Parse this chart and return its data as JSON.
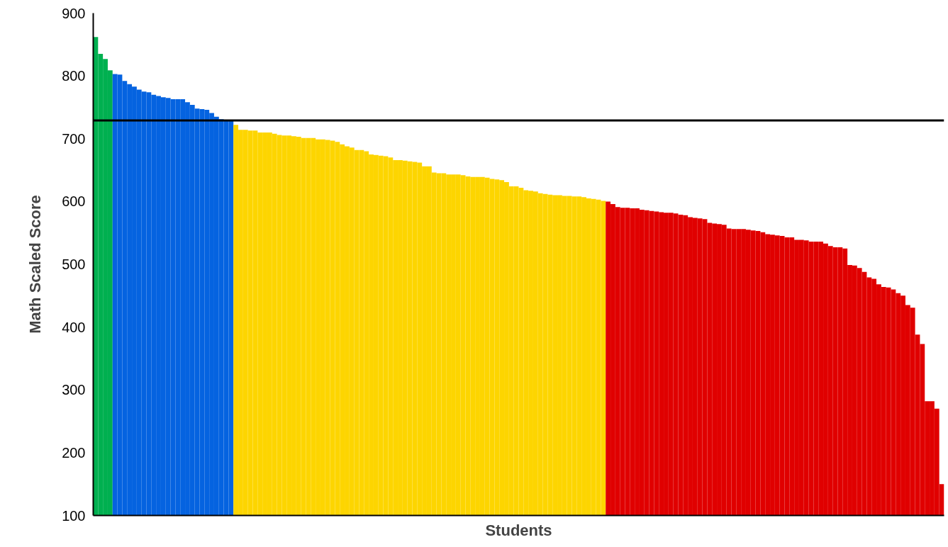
{
  "chart_data": {
    "type": "bar",
    "xlabel": "Students",
    "ylabel": "Math Scaled Score",
    "categories": [
      null,
      null,
      null,
      null,
      null,
      null,
      null,
      null,
      null,
      null,
      null,
      null,
      null,
      null,
      null,
      null,
      null,
      null,
      null,
      null,
      null,
      null,
      null,
      null,
      null,
      null,
      null,
      null,
      null,
      null,
      null,
      null,
      null,
      null,
      null,
      null,
      null,
      null,
      null,
      null,
      null,
      null,
      null,
      null,
      null,
      null,
      null,
      null,
      null,
      null,
      null,
      null,
      null,
      null,
      null,
      null,
      null,
      null,
      null,
      null,
      null,
      null,
      null,
      null,
      null,
      null,
      null,
      null,
      null,
      null,
      null,
      null,
      null,
      null,
      null,
      null,
      null,
      null,
      null,
      null,
      null,
      null,
      null,
      null,
      null,
      null,
      null,
      null,
      null,
      null,
      null,
      null,
      null,
      null,
      null,
      null,
      null,
      null,
      null,
      null,
      null,
      null,
      null,
      null,
      null,
      null,
      null,
      null,
      null,
      null,
      null,
      null,
      null,
      null,
      null,
      null,
      null,
      null,
      null,
      null,
      null,
      null,
      null,
      null,
      null,
      null,
      null,
      null,
      null,
      null,
      null,
      null,
      null,
      null,
      null,
      null,
      null,
      null,
      null,
      null,
      null,
      null,
      null,
      null,
      null,
      null,
      null,
      null,
      null,
      null,
      null,
      null,
      null,
      null,
      null,
      null,
      null,
      null,
      null,
      null,
      null,
      null,
      null,
      null,
      null,
      null,
      null,
      null,
      null,
      null,
      null,
      null,
      null,
      null,
      null,
      null
    ],
    "values": [
      862,
      835,
      827,
      809,
      803,
      802,
      792,
      787,
      783,
      778,
      775,
      774,
      770,
      768,
      766,
      765,
      763,
      763,
      763,
      758,
      754,
      748,
      747,
      746,
      741,
      735,
      731,
      729,
      729,
      722,
      714,
      714,
      713,
      713,
      710,
      710,
      710,
      708,
      706,
      705,
      705,
      704,
      703,
      701,
      701,
      701,
      699,
      699,
      698,
      697,
      695,
      691,
      688,
      686,
      682,
      682,
      680,
      675,
      674,
      673,
      672,
      670,
      666,
      666,
      665,
      664,
      663,
      662,
      656,
      656,
      646,
      645,
      645,
      643,
      643,
      643,
      642,
      640,
      639,
      639,
      639,
      638,
      636,
      635,
      634,
      631,
      624,
      624,
      622,
      618,
      617,
      616,
      613,
      612,
      611,
      610,
      610,
      609,
      609,
      608,
      608,
      607,
      605,
      604,
      603,
      601,
      600,
      596,
      591,
      590,
      590,
      589,
      589,
      587,
      586,
      585,
      584,
      583,
      582,
      582,
      581,
      579,
      578,
      575,
      574,
      573,
      572,
      566,
      565,
      564,
      563,
      557,
      556,
      556,
      556,
      555,
      554,
      553,
      551,
      548,
      547,
      546,
      545,
      543,
      543,
      539,
      539,
      538,
      536,
      536,
      536,
      533,
      529,
      527,
      527,
      525,
      499,
      498,
      494,
      488,
      479,
      477,
      468,
      464,
      463,
      460,
      454,
      450,
      435,
      431,
      388,
      373,
      282,
      282,
      270,
      150
    ],
    "colors": [
      "#00b050",
      "#00b050",
      "#00b050",
      "#00b050",
      "#0563e0",
      "#0563e0",
      "#0563e0",
      "#0563e0",
      "#0563e0",
      "#0563e0",
      "#0563e0",
      "#0563e0",
      "#0563e0",
      "#0563e0",
      "#0563e0",
      "#0563e0",
      "#0563e0",
      "#0563e0",
      "#0563e0",
      "#0563e0",
      "#0563e0",
      "#0563e0",
      "#0563e0",
      "#0563e0",
      "#0563e0",
      "#0563e0",
      "#0563e0",
      "#0563e0",
      "#0563e0",
      "#fdd500",
      "#fdd500",
      "#fdd500",
      "#fdd500",
      "#fdd500",
      "#fdd500",
      "#fdd500",
      "#fdd500",
      "#fdd500",
      "#fdd500",
      "#fdd500",
      "#fdd500",
      "#fdd500",
      "#fdd500",
      "#fdd500",
      "#fdd500",
      "#fdd500",
      "#fdd500",
      "#fdd500",
      "#fdd500",
      "#fdd500",
      "#fdd500",
      "#fdd500",
      "#fdd500",
      "#fdd500",
      "#fdd500",
      "#fdd500",
      "#fdd500",
      "#fdd500",
      "#fdd500",
      "#fdd500",
      "#fdd500",
      "#fdd500",
      "#fdd500",
      "#fdd500",
      "#fdd500",
      "#fdd500",
      "#fdd500",
      "#fdd500",
      "#fdd500",
      "#fdd500",
      "#fdd500",
      "#fdd500",
      "#fdd500",
      "#fdd500",
      "#fdd500",
      "#fdd500",
      "#fdd500",
      "#fdd500",
      "#fdd500",
      "#fdd500",
      "#fdd500",
      "#fdd500",
      "#fdd500",
      "#fdd500",
      "#fdd500",
      "#fdd500",
      "#fdd500",
      "#fdd500",
      "#fdd500",
      "#fdd500",
      "#fdd500",
      "#fdd500",
      "#fdd500",
      "#fdd500",
      "#fdd500",
      "#fdd500",
      "#fdd500",
      "#fdd500",
      "#fdd500",
      "#fdd500",
      "#fdd500",
      "#fdd500",
      "#fdd500",
      "#fdd500",
      "#fdd500",
      "#fdd500",
      "#e00000",
      "#e00000",
      "#e00000",
      "#e00000",
      "#e00000",
      "#e00000",
      "#e00000",
      "#e00000",
      "#e00000",
      "#e00000",
      "#e00000",
      "#e00000",
      "#e00000",
      "#e00000",
      "#e00000",
      "#e00000",
      "#e00000",
      "#e00000",
      "#e00000",
      "#e00000",
      "#e00000",
      "#e00000",
      "#e00000",
      "#e00000",
      "#e00000",
      "#e00000",
      "#e00000",
      "#e00000",
      "#e00000",
      "#e00000",
      "#e00000",
      "#e00000",
      "#e00000",
      "#e00000",
      "#e00000",
      "#e00000",
      "#e00000",
      "#e00000",
      "#e00000",
      "#e00000",
      "#e00000",
      "#e00000",
      "#e00000",
      "#e00000",
      "#e00000",
      "#e00000",
      "#e00000",
      "#e00000",
      "#e00000",
      "#e00000",
      "#e00000",
      "#e00000",
      "#e00000",
      "#e00000",
      "#e00000",
      "#e00000",
      "#e00000",
      "#e00000",
      "#e00000",
      "#e00000",
      "#e00000",
      "#e00000",
      "#e00000",
      "#e00000",
      "#e00000",
      "#e00000",
      "#e00000",
      "#e00000",
      "#e00000",
      "#e00000"
    ],
    "ylim": [
      100,
      900
    ],
    "yticks": [
      100,
      200,
      300,
      400,
      500,
      600,
      700,
      800,
      900
    ],
    "tick_labels": "y",
    "ref_lines": [
      {
        "axis": "y",
        "value": 729,
        "color": "#000000"
      }
    ]
  }
}
